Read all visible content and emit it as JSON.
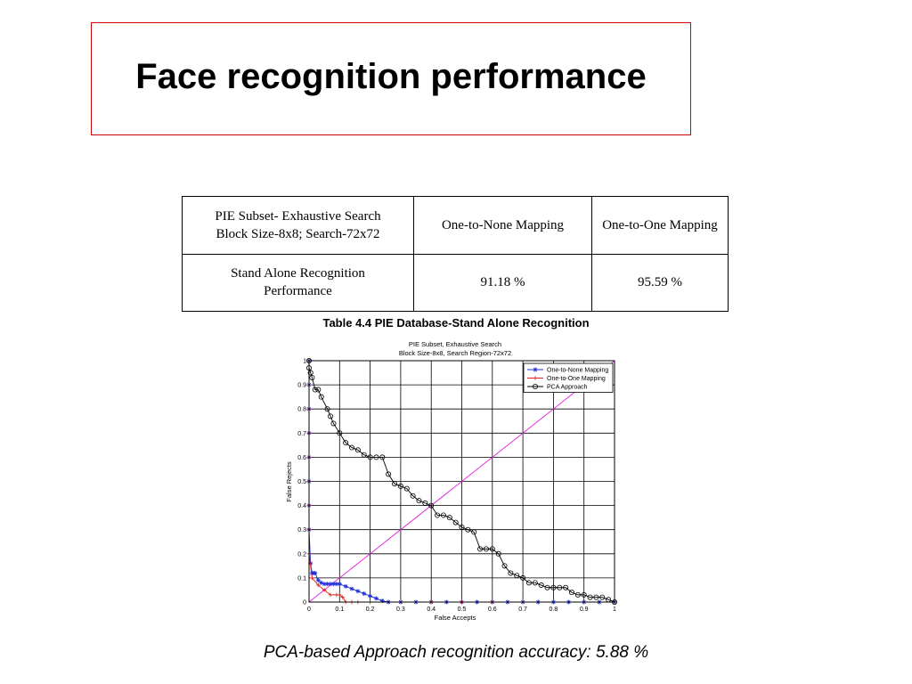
{
  "slide": {
    "title": "Face recognition performance",
    "caption": "Table 4.4 PIE Database-Stand Alone Recognition",
    "footer": "PCA-based Approach recognition accuracy: 5.88 %"
  },
  "table": {
    "header": {
      "c0_line1": "PIE Subset- Exhaustive Search",
      "c0_line2": "Block Size-8x8; Search-72x72",
      "c1": "One-to-None Mapping",
      "c2": "One-to-One Mapping"
    },
    "row": {
      "c0_line1": "Stand Alone Recognition",
      "c0_line2": "Performance",
      "c1": "91.18 %",
      "c2": "95.59 %"
    }
  },
  "chart_data": {
    "type": "line",
    "title": "PIE Subset, Exhaustive Search",
    "subtitle": "Block Size-8x8, Search Region-72x72",
    "xlabel": "False Accepts",
    "ylabel": "False Rejects",
    "xlim": [
      0,
      1
    ],
    "ylim": [
      0,
      1
    ],
    "xticks": [
      "0",
      "0.1",
      "0.2",
      "0.3",
      "0.4",
      "0.5",
      "0.6",
      "0.7",
      "0.8",
      "0.9",
      "1"
    ],
    "yticks": [
      "0",
      "0.1",
      "0.2",
      "0.3",
      "0.4",
      "0.5",
      "0.6",
      "0.7",
      "0.8",
      "0.9",
      "1"
    ],
    "grid": true,
    "legend_position": "top-right",
    "series": [
      {
        "name": "One-to-None Mapping",
        "color": "#1f2fd6",
        "marker": "star",
        "x": [
          0,
          0,
          0,
          0,
          0,
          0,
          0,
          0,
          0.005,
          0.01,
          0.015,
          0.02,
          0.03,
          0.04,
          0.05,
          0.06,
          0.07,
          0.08,
          0.09,
          0.1,
          0.12,
          0.14,
          0.16,
          0.18,
          0.2,
          0.22,
          0.24,
          0.26,
          0.3,
          0.35,
          0.4,
          0.45,
          0.5,
          0.55,
          0.6,
          0.65,
          0.7,
          0.75,
          0.8,
          0.85,
          0.9,
          0.95,
          1
        ],
        "y": [
          1,
          0.9,
          0.8,
          0.7,
          0.6,
          0.5,
          0.4,
          0.3,
          0.16,
          0.12,
          0.12,
          0.12,
          0.09,
          0.08,
          0.075,
          0.075,
          0.075,
          0.075,
          0.075,
          0.075,
          0.065,
          0.055,
          0.045,
          0.035,
          0.025,
          0.015,
          0.005,
          0,
          0,
          0,
          0,
          0,
          0,
          0,
          0,
          0,
          0,
          0,
          0,
          0,
          0,
          0,
          0
        ]
      },
      {
        "name": "One-to-One Mapping",
        "color": "#e0201a",
        "marker": "plus",
        "x": [
          0,
          0,
          0,
          0,
          0,
          0,
          0,
          0,
          0,
          0.01,
          0.03,
          0.05,
          0.07,
          0.09,
          0.1,
          0.11,
          0.12,
          0.14,
          0.16,
          0.2,
          0.3,
          0.4,
          0.5,
          0.6,
          0.7,
          0.8,
          0.9,
          1
        ],
        "y": [
          1,
          0.9,
          0.8,
          0.7,
          0.6,
          0.5,
          0.4,
          0.3,
          0.2,
          0.1,
          0.07,
          0.05,
          0.03,
          0.03,
          0.03,
          0.02,
          0,
          0,
          0,
          0,
          0,
          0,
          0,
          0,
          0,
          0,
          0,
          0
        ]
      },
      {
        "name": "PCA Approach",
        "color": "#000000",
        "marker": "circle",
        "x": [
          0,
          0,
          0.005,
          0.01,
          0.02,
          0.03,
          0.04,
          0.06,
          0.07,
          0.08,
          0.1,
          0.12,
          0.14,
          0.16,
          0.18,
          0.2,
          0.22,
          0.24,
          0.26,
          0.28,
          0.3,
          0.32,
          0.34,
          0.36,
          0.38,
          0.4,
          0.42,
          0.44,
          0.46,
          0.48,
          0.5,
          0.52,
          0.54,
          0.56,
          0.58,
          0.6,
          0.62,
          0.64,
          0.66,
          0.68,
          0.7,
          0.72,
          0.74,
          0.76,
          0.78,
          0.8,
          0.82,
          0.84,
          0.86,
          0.88,
          0.9,
          0.92,
          0.94,
          0.96,
          0.98,
          1
        ],
        "y": [
          1,
          0.97,
          0.95,
          0.93,
          0.88,
          0.88,
          0.85,
          0.8,
          0.77,
          0.74,
          0.7,
          0.66,
          0.64,
          0.63,
          0.61,
          0.6,
          0.6,
          0.6,
          0.53,
          0.49,
          0.48,
          0.47,
          0.44,
          0.42,
          0.41,
          0.4,
          0.36,
          0.36,
          0.35,
          0.33,
          0.31,
          0.3,
          0.29,
          0.22,
          0.22,
          0.22,
          0.2,
          0.15,
          0.12,
          0.11,
          0.1,
          0.08,
          0.08,
          0.07,
          0.06,
          0.06,
          0.06,
          0.06,
          0.04,
          0.03,
          0.03,
          0.02,
          0.02,
          0.02,
          0.01,
          0
        ]
      },
      {
        "name": "",
        "color": "#e020e0",
        "marker": "none",
        "x": [
          0,
          1
        ],
        "y": [
          0,
          1
        ]
      }
    ]
  }
}
